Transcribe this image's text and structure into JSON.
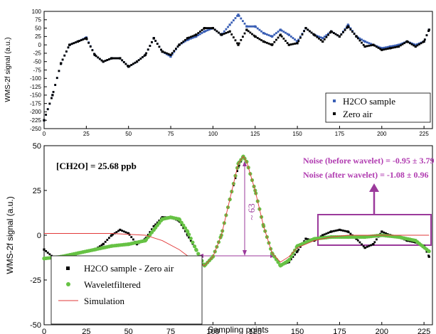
{
  "chart_data": [
    {
      "type": "scatter",
      "ylabel": "WMS-2f signal (a.u.)",
      "xlim": [
        0,
        230
      ],
      "ylim": [
        -250,
        100
      ],
      "x_ticks": [
        0,
        25,
        50,
        75,
        100,
        125,
        150,
        175,
        200,
        225
      ],
      "y_ticks": [
        100,
        75,
        50,
        25,
        0,
        -25,
        -50,
        -75,
        -100,
        -125,
        -150,
        -175,
        -200,
        -225,
        -250
      ],
      "legend_position": "bottom-right",
      "series": [
        {
          "name": "H2CO sample",
          "color": "#3a5fb5",
          "marker": "square",
          "x": [
            0,
            5,
            10,
            15,
            20,
            25,
            30,
            35,
            40,
            45,
            50,
            55,
            60,
            65,
            70,
            75,
            80,
            85,
            90,
            95,
            100,
            105,
            110,
            115,
            120,
            125,
            130,
            135,
            140,
            145,
            150,
            155,
            160,
            165,
            170,
            175,
            180,
            185,
            190,
            195,
            200,
            205,
            210,
            215,
            220,
            225,
            228
          ],
          "y": [
            -225,
            -150,
            -55,
            0,
            10,
            22,
            -30,
            -50,
            -40,
            -40,
            -65,
            -50,
            -30,
            20,
            -20,
            -35,
            0,
            15,
            25,
            40,
            50,
            30,
            60,
            90,
            55,
            55,
            35,
            25,
            45,
            30,
            10,
            50,
            30,
            20,
            40,
            25,
            60,
            25,
            10,
            0,
            -10,
            -5,
            0,
            10,
            0,
            10,
            45
          ]
        },
        {
          "name": "Zero air",
          "color": "#000000",
          "marker": "square",
          "x": [
            0,
            5,
            10,
            15,
            20,
            25,
            30,
            35,
            40,
            45,
            50,
            55,
            60,
            65,
            70,
            75,
            80,
            85,
            90,
            95,
            100,
            105,
            110,
            115,
            120,
            125,
            130,
            135,
            140,
            145,
            150,
            155,
            160,
            165,
            170,
            175,
            180,
            185,
            190,
            195,
            200,
            205,
            210,
            215,
            220,
            225,
            228
          ],
          "y": [
            -225,
            -150,
            -55,
            0,
            10,
            20,
            -30,
            -50,
            -40,
            -40,
            -65,
            -50,
            -30,
            20,
            -20,
            -30,
            0,
            20,
            30,
            50,
            50,
            30,
            40,
            0,
            45,
            25,
            10,
            0,
            30,
            0,
            5,
            50,
            30,
            10,
            40,
            25,
            55,
            25,
            -5,
            0,
            -15,
            -10,
            -5,
            10,
            -5,
            10,
            45
          ]
        }
      ]
    },
    {
      "type": "scatter",
      "xlabel": "Sampling points",
      "ylabel": "WMS-2f signal (a.u.)",
      "xlim": [
        0,
        230
      ],
      "ylim": [
        -50,
        50
      ],
      "x_ticks": [
        0,
        25,
        50,
        75,
        100,
        125,
        150,
        175,
        200,
        225
      ],
      "y_ticks": [
        50,
        25,
        0,
        -25,
        -50
      ],
      "legend_position": "bottom-left",
      "annotations": {
        "concentration": "[CH2O] = 25.68 ppb",
        "noise_before": "Noise (before wavelet)  = -0.95 ± 3.79",
        "noise_after": "Noise (after wavelet)  = -1.08 ± 0.96",
        "peak_height": "~ 63"
      },
      "series": [
        {
          "name": "H2CO sample - Zero air",
          "color": "#000000",
          "marker": "square",
          "x": [
            0,
            5,
            10,
            15,
            20,
            25,
            30,
            35,
            40,
            45,
            50,
            55,
            60,
            65,
            70,
            75,
            80,
            85,
            90,
            95,
            100,
            105,
            110,
            115,
            118,
            120,
            125,
            130,
            135,
            140,
            145,
            150,
            155,
            160,
            165,
            170,
            175,
            180,
            185,
            190,
            195,
            200,
            205,
            210,
            215,
            220,
            225,
            228
          ],
          "y": [
            -8,
            -12,
            -17,
            -13,
            -10,
            -9,
            -8,
            -5,
            0,
            3,
            1,
            -5,
            -2,
            5,
            10,
            10,
            8,
            0,
            -8,
            -17,
            -12,
            0,
            20,
            38,
            44,
            41,
            25,
            5,
            -10,
            -17,
            -15,
            -9,
            -2,
            -3,
            0,
            2,
            3,
            2,
            -2,
            -7,
            -5,
            2,
            0,
            -1,
            -3,
            -4,
            -6,
            -12
          ]
        },
        {
          "name": "Waveletfiltered",
          "color": "#66c244",
          "marker": "circle",
          "x": [
            0,
            10,
            20,
            30,
            40,
            50,
            60,
            65,
            70,
            75,
            80,
            85,
            90,
            95,
            100,
            105,
            110,
            115,
            118,
            120,
            125,
            130,
            135,
            140,
            145,
            150,
            160,
            170,
            180,
            190,
            200,
            210,
            220,
            228
          ],
          "y": [
            -13,
            -12,
            -10,
            -8,
            -6,
            -5,
            -3,
            3,
            9,
            10,
            9,
            2,
            -8,
            -17,
            -12,
            0,
            20,
            40,
            44,
            41,
            25,
            5,
            -10,
            -17,
            -14,
            -6,
            -2,
            -1,
            -1,
            -1,
            0,
            -1,
            -3,
            -9
          ]
        },
        {
          "name": "Simulation",
          "color": "#e23a3a",
          "marker": "line",
          "x": [
            0,
            20,
            40,
            60,
            70,
            80,
            90,
            95,
            100,
            105,
            110,
            115,
            118,
            120,
            125,
            130,
            135,
            140,
            145,
            150,
            160,
            170,
            180,
            190,
            200,
            210,
            220,
            228
          ],
          "y": [
            1,
            1,
            1,
            0,
            -3,
            -8,
            -15,
            -17,
            -12,
            0,
            20,
            40,
            44,
            41,
            25,
            5,
            -10,
            -15,
            -12,
            -7,
            -3,
            -1,
            0,
            0,
            0,
            0,
            0,
            0
          ]
        }
      ]
    }
  ]
}
